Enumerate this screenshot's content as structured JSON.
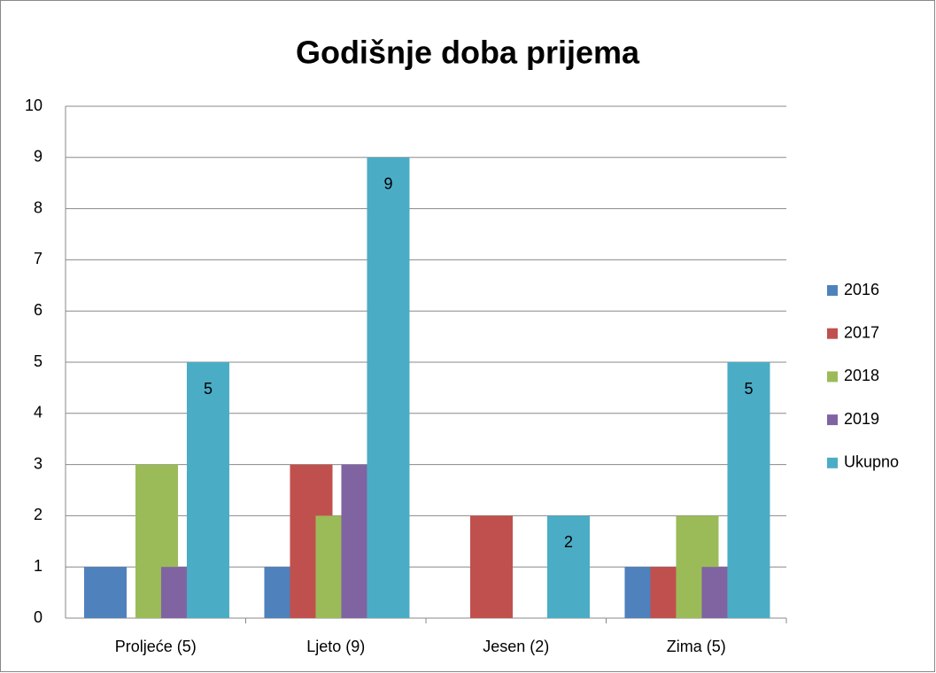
{
  "chart_data": {
    "type": "bar",
    "title": "Godišnje doba prijema",
    "categories": [
      "Proljeće (5)",
      "Ljeto (9)",
      "Jesen (2)",
      "Zima (5)"
    ],
    "series": [
      {
        "name": "2016",
        "color": "#4f81bd",
        "values": [
          1,
          1,
          0,
          1
        ]
      },
      {
        "name": "2017",
        "color": "#c0504d",
        "values": [
          0,
          3,
          2,
          1
        ]
      },
      {
        "name": "2018",
        "color": "#9bbb59",
        "values": [
          3,
          2,
          0,
          2
        ]
      },
      {
        "name": "2019",
        "color": "#8064a2",
        "values": [
          1,
          3,
          0,
          1
        ]
      },
      {
        "name": "Ukupno",
        "color": "#4bacc6",
        "values": [
          5,
          9,
          2,
          5
        ],
        "data_labels": true
      }
    ],
    "ylim": [
      0,
      10
    ],
    "yticks": [
      0,
      1,
      2,
      3,
      4,
      5,
      6,
      7,
      8,
      9,
      10
    ],
    "grid": true,
    "legend": "right"
  }
}
